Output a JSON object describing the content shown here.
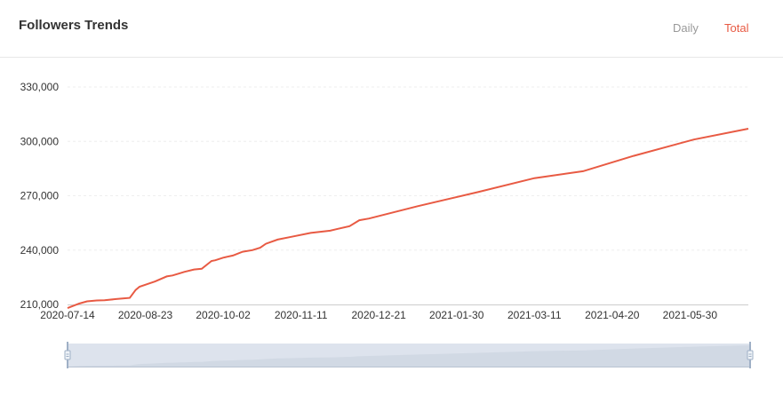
{
  "header": {
    "title": "Followers Trends",
    "toggle_daily": "Daily",
    "toggle_total": "Total"
  },
  "colors": {
    "line": "#e85a43",
    "active_toggle": "#e85a43",
    "inactive_toggle": "#999999",
    "gridline": "#eeeeee",
    "slider_fill": "#dde3ed",
    "slider_border": "#b9c3d2"
  },
  "chart_data": {
    "type": "line",
    "title": "",
    "xlabel": "",
    "ylabel": "",
    "x_ticks": [
      "2020-07-14",
      "2020-08-23",
      "2020-10-02",
      "2020-11-11",
      "2020-12-21",
      "2021-01-30",
      "2021-03-11",
      "2021-04-20",
      "2021-05-30"
    ],
    "y_ticks": [
      "210,000",
      "240,000",
      "270,000",
      "300,000",
      "330,000"
    ],
    "ylim": [
      210000,
      330000
    ],
    "xlim": [
      "2020-07-14",
      "2021-06-29"
    ],
    "grid": "horizontal dashed",
    "has_zoom_slider": true,
    "series": [
      {
        "x": [
          "2020-07-14",
          "2020-07-20",
          "2020-07-24",
          "2020-07-29",
          "2020-08-02",
          "2020-08-08",
          "2020-08-12",
          "2020-08-15",
          "2020-08-18",
          "2020-08-20",
          "2020-08-24",
          "2020-08-28",
          "2020-09-03",
          "2020-09-06",
          "2020-09-10",
          "2020-09-12",
          "2020-09-17",
          "2020-09-21",
          "2020-09-26",
          "2020-09-28",
          "2020-10-02",
          "2020-10-07",
          "2020-10-12",
          "2020-10-17",
          "2020-10-21",
          "2020-10-24",
          "2020-10-30",
          "2020-11-06",
          "2020-11-16",
          "2020-11-26",
          "2020-11-29",
          "2020-12-06",
          "2020-12-11",
          "2020-12-16",
          "2021-01-10",
          "2021-02-10",
          "2021-03-11",
          "2021-04-05",
          "2021-05-01",
          "2021-06-01",
          "2021-06-29"
        ],
        "values": [
          208000,
          210500,
          211700,
          212200,
          212300,
          213000,
          213400,
          213600,
          218000,
          219800,
          221200,
          222700,
          225500,
          226000,
          227300,
          228000,
          229300,
          229700,
          234000,
          234400,
          235800,
          237000,
          239100,
          240000,
          241300,
          243500,
          245800,
          247300,
          249500,
          250700,
          251500,
          253200,
          256500,
          257400,
          264200,
          272000,
          279700,
          283500,
          292000,
          301000,
          307000
        ]
      }
    ]
  }
}
